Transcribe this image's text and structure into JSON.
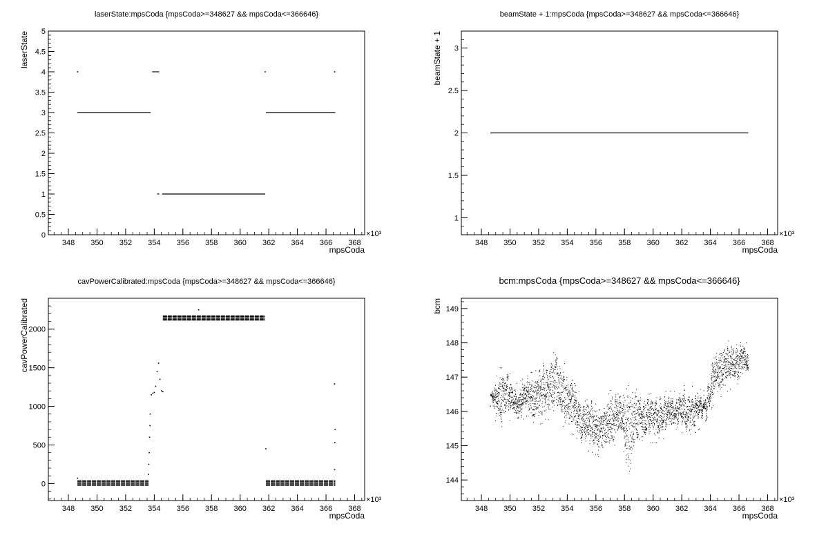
{
  "chart_data": [
    {
      "type": "scatter",
      "title": "laserState:mpsCoda {mpsCoda>=348627 && mpsCoda<=366646}",
      "xlabel": "mpsCoda",
      "ylabel": "laserState",
      "x_multiplier": "×10³",
      "xlim": [
        346.6,
        368.7
      ],
      "ylim": [
        0,
        5
      ],
      "xticks": [
        348,
        350,
        352,
        354,
        356,
        358,
        360,
        362,
        364,
        366,
        368
      ],
      "yticks": [
        0,
        0.5,
        1,
        1.5,
        2,
        2.5,
        3,
        3.5,
        4,
        4.5,
        5
      ],
      "segments": [
        {
          "x": [
            348.63,
            353.75
          ],
          "y": 3
        },
        {
          "x": [
            353.85,
            354.35
          ],
          "y": 4
        },
        {
          "x": [
            354.2,
            354.35
          ],
          "y": 1
        },
        {
          "x": [
            354.55,
            361.75
          ],
          "y": 1
        },
        {
          "x": [
            361.8,
            366.65
          ],
          "y": 3
        }
      ],
      "points": [
        {
          "x": 348.65,
          "y": 4
        },
        {
          "x": 361.75,
          "y": 4
        },
        {
          "x": 366.6,
          "y": 4
        }
      ]
    },
    {
      "type": "scatter",
      "title": "beamState + 1:mpsCoda {mpsCoda>=348627 && mpsCoda<=366646}",
      "xlabel": "mpsCoda",
      "ylabel": "beamState + 1",
      "x_multiplier": "×10³",
      "xlim": [
        346.6,
        368.7
      ],
      "ylim": [
        0.8,
        3.2
      ],
      "xticks": [
        348,
        350,
        352,
        354,
        356,
        358,
        360,
        362,
        364,
        366,
        368
      ],
      "yticks": [
        1,
        1.5,
        2,
        2.5,
        3
      ],
      "segments": [
        {
          "x": [
            348.63,
            366.65
          ],
          "y": 2
        }
      ],
      "points": []
    },
    {
      "type": "scatter",
      "title": "cavPowerCalibrated:mpsCoda {mpsCoda>=348627 && mpsCoda<=366646}",
      "xlabel": "mpsCoda",
      "ylabel": "cavPowerCalibrated",
      "x_multiplier": "×10³",
      "xlim": [
        346.6,
        368.7
      ],
      "ylim": [
        -220,
        2400
      ],
      "xticks": [
        348,
        350,
        352,
        354,
        356,
        358,
        360,
        362,
        364,
        366,
        368
      ],
      "yticks": [
        0,
        500,
        1000,
        1500,
        2000
      ],
      "bands": [
        {
          "x": [
            348.63,
            353.6
          ],
          "y": [
            -25,
            40
          ],
          "lines": 6
        },
        {
          "x": [
            354.6,
            361.75
          ],
          "y": [
            2115,
            2175
          ],
          "lines": 6
        },
        {
          "x": [
            361.8,
            366.65
          ],
          "y": [
            -25,
            40
          ],
          "lines": 6
        }
      ],
      "points": [
        {
          "x": 348.65,
          "y": 70
        },
        {
          "x": 353.6,
          "y": 120
        },
        {
          "x": 353.62,
          "y": 250
        },
        {
          "x": 353.65,
          "y": 400
        },
        {
          "x": 353.67,
          "y": 600
        },
        {
          "x": 353.7,
          "y": 750
        },
        {
          "x": 353.72,
          "y": 900
        },
        {
          "x": 353.8,
          "y": 1150
        },
        {
          "x": 353.9,
          "y": 1170
        },
        {
          "x": 354.0,
          "y": 1180
        },
        {
          "x": 354.1,
          "y": 1260
        },
        {
          "x": 354.2,
          "y": 1450
        },
        {
          "x": 354.3,
          "y": 1560
        },
        {
          "x": 354.4,
          "y": 1350
        },
        {
          "x": 354.5,
          "y": 1200
        },
        {
          "x": 354.6,
          "y": 1190
        },
        {
          "x": 357.1,
          "y": 2250
        },
        {
          "x": 361.8,
          "y": 450
        },
        {
          "x": 366.6,
          "y": 180
        },
        {
          "x": 366.62,
          "y": 530
        },
        {
          "x": 366.64,
          "y": 700
        },
        {
          "x": 366.6,
          "y": 1290
        }
      ]
    },
    {
      "type": "scatter",
      "title": "bcm:mpsCoda {mpsCoda>=348627 && mpsCoda<=366646}",
      "xlabel": "mpsCoda",
      "ylabel": "bcm",
      "x_multiplier": "×10³",
      "xlim": [
        346.6,
        368.7
      ],
      "ylim": [
        143.4,
        149.3
      ],
      "xticks": [
        348,
        350,
        352,
        354,
        356,
        358,
        360,
        362,
        364,
        366,
        368
      ],
      "yticks": [
        144,
        145,
        146,
        147,
        148,
        149
      ],
      "envelope": {
        "x": [
          348.6,
          349.3,
          349.8,
          350.5,
          351.2,
          351.8,
          352.5,
          353.2,
          353.8,
          354.5,
          355.2,
          355.8,
          356.5,
          357.1,
          357.8,
          358.3,
          359.0,
          359.6,
          360.3,
          361.0,
          361.6,
          362.3,
          363.0,
          363.6,
          364.3,
          364.9,
          365.5,
          366.1,
          366.65
        ],
        "lo": [
          145.9,
          145.4,
          145.7,
          145.5,
          145.8,
          145.5,
          145.6,
          145.9,
          145.4,
          145.2,
          144.8,
          144.7,
          144.5,
          144.9,
          145.0,
          144.0,
          145.1,
          145.0,
          145.0,
          145.2,
          145.4,
          145.2,
          145.3,
          145.6,
          146.2,
          146.4,
          146.6,
          146.7,
          146.7
        ],
        "hi": [
          146.7,
          147.4,
          147.3,
          146.9,
          147.2,
          147.3,
          147.6,
          147.9,
          147.5,
          146.9,
          146.4,
          146.6,
          146.3,
          146.8,
          146.5,
          146.9,
          146.7,
          146.6,
          146.7,
          146.7,
          146.7,
          146.9,
          146.8,
          146.7,
          147.9,
          148.4,
          148.1,
          148.4,
          148.0
        ]
      }
    }
  ]
}
